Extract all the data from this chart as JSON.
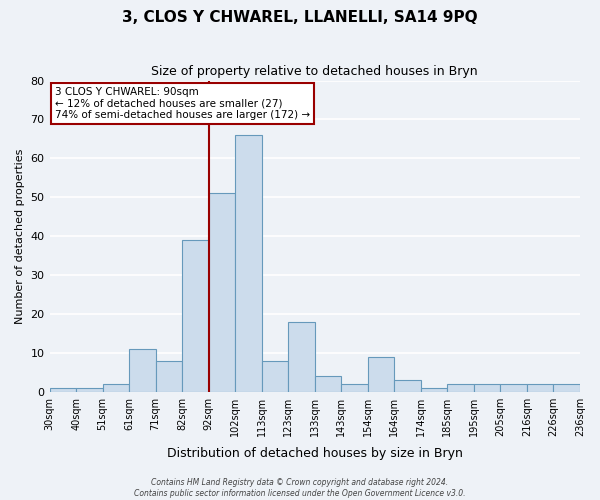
{
  "title": "3, CLOS Y CHWAREL, LLANELLI, SA14 9PQ",
  "subtitle": "Size of property relative to detached houses in Bryn",
  "xlabel": "Distribution of detached houses by size in Bryn",
  "ylabel": "Number of detached properties",
  "bar_labels": [
    "30sqm",
    "40sqm",
    "51sqm",
    "61sqm",
    "71sqm",
    "82sqm",
    "92sqm",
    "102sqm",
    "113sqm",
    "123sqm",
    "133sqm",
    "143sqm",
    "154sqm",
    "164sqm",
    "174sqm",
    "185sqm",
    "195sqm",
    "205sqm",
    "216sqm",
    "226sqm",
    "236sqm"
  ],
  "bar_values": [
    1,
    1,
    2,
    11,
    8,
    39,
    51,
    66,
    8,
    18,
    4,
    2,
    9,
    3,
    1,
    2,
    2,
    2,
    2,
    2
  ],
  "n_bars": 20,
  "property_line_idx": 6,
  "ylim": [
    0,
    80
  ],
  "yticks": [
    0,
    10,
    20,
    30,
    40,
    50,
    60,
    70,
    80
  ],
  "bar_color": "#ccdcec",
  "bar_edge_color": "#6699bb",
  "property_line_color": "#990000",
  "annotation_text_line1": "3 CLOS Y CHWAREL: 90sqm",
  "annotation_text_line2": "← 12% of detached houses are smaller (27)",
  "annotation_text_line3": "74% of semi-detached houses are larger (172) →",
  "annotation_box_edge_color": "#990000",
  "annotation_box_face_color": "#ffffff",
  "footer_line1": "Contains HM Land Registry data © Crown copyright and database right 2024.",
  "footer_line2": "Contains public sector information licensed under the Open Government Licence v3.0.",
  "background_color": "#eef2f7",
  "grid_color": "#ffffff",
  "title_fontsize": 11,
  "subtitle_fontsize": 9,
  "xlabel_fontsize": 9,
  "ylabel_fontsize": 8,
  "tick_fontsize": 7
}
